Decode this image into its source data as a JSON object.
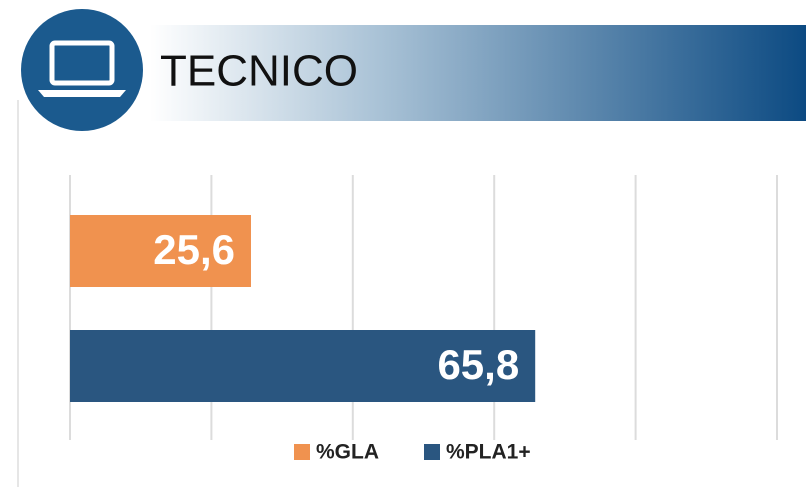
{
  "chart_data": {
    "type": "bar",
    "orientation": "horizontal",
    "title": "TECNICO",
    "categories": [
      null
    ],
    "series": [
      {
        "name": "%GLA",
        "color": "#f0924f",
        "values": [
          25.6
        ],
        "value_labels": [
          "25,6"
        ]
      },
      {
        "name": "%PLA1+",
        "color": "#2a5680",
        "values": [
          65.8
        ],
        "value_labels": [
          "65,8"
        ]
      }
    ],
    "xlim": [
      0,
      100
    ],
    "xticks": [
      0,
      20,
      40,
      60,
      80,
      100
    ],
    "grid": true,
    "legend": "bottom"
  }
}
